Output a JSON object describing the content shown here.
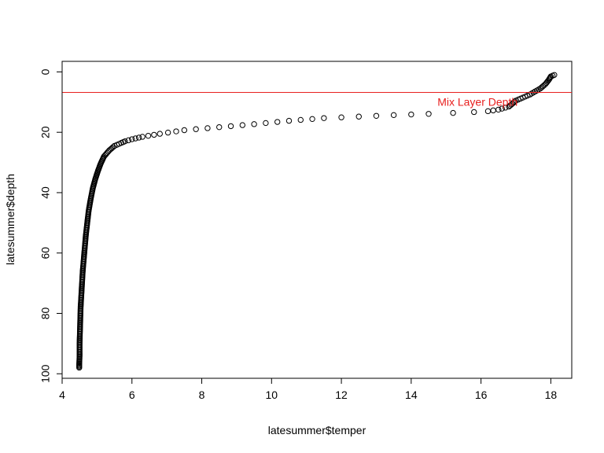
{
  "chart_data": {
    "type": "scatter",
    "title": "",
    "xlabel": "latesummer$temper",
    "ylabel": "latesummer$depth",
    "xlim": [
      4,
      18.6
    ],
    "ylim": [
      101.5,
      -3.5
    ],
    "y_reversed": true,
    "xticks": [
      4,
      6,
      8,
      10,
      12,
      14,
      16,
      18
    ],
    "xtick_labels": [
      "4",
      "6",
      "8",
      "10",
      "12",
      "14",
      "16",
      "18"
    ],
    "yticks": [
      0,
      20,
      40,
      60,
      80,
      100
    ],
    "ytick_labels": [
      "0",
      "20",
      "40",
      "60",
      "80",
      "100"
    ],
    "grid": false,
    "marker": "open-circle",
    "point_color": "#000000",
    "profile": {
      "temperature": [
        18.1,
        18.0,
        17.95,
        17.85,
        17.7,
        17.55,
        17.4,
        17.2,
        17.0,
        16.9,
        16.8,
        16.5,
        16.2,
        15.8,
        15.2,
        14.5,
        13.5,
        12.5,
        11.5,
        10.5,
        9.5,
        8.5,
        7.5,
        6.8,
        6.3,
        6.0,
        5.8,
        5.7,
        5.5,
        5.35,
        5.2,
        5.1,
        5.02,
        4.95,
        4.88,
        4.82,
        4.76,
        4.72,
        4.68,
        4.65,
        4.62,
        4.59,
        4.57,
        4.55,
        4.53,
        4.52,
        4.51,
        4.5,
        4.5,
        4.49,
        4.49
      ],
      "depth": [
        1.0,
        1.5,
        2.5,
        4.0,
        5.5,
        6.5,
        7.5,
        8.5,
        9.5,
        10.5,
        11.5,
        12.5,
        13.0,
        13.3,
        13.6,
        13.9,
        14.3,
        14.8,
        15.3,
        16.2,
        17.3,
        18.3,
        19.3,
        20.5,
        21.5,
        22.3,
        23.0,
        23.5,
        24.5,
        26.0,
        28.0,
        30.5,
        33.0,
        35.5,
        38.5,
        42.0,
        46.0,
        50.0,
        54.0,
        58.0,
        62.0,
        66.0,
        70.0,
        74.0,
        78.0,
        82.0,
        86.0,
        90.0,
        94.0,
        97.0,
        98.0
      ]
    },
    "mixed_layer": {
      "depth": 6.8,
      "color": "#e8201f",
      "label": "Mix Layer Depth",
      "label_x": 15.9,
      "label_y": 10.2
    }
  }
}
